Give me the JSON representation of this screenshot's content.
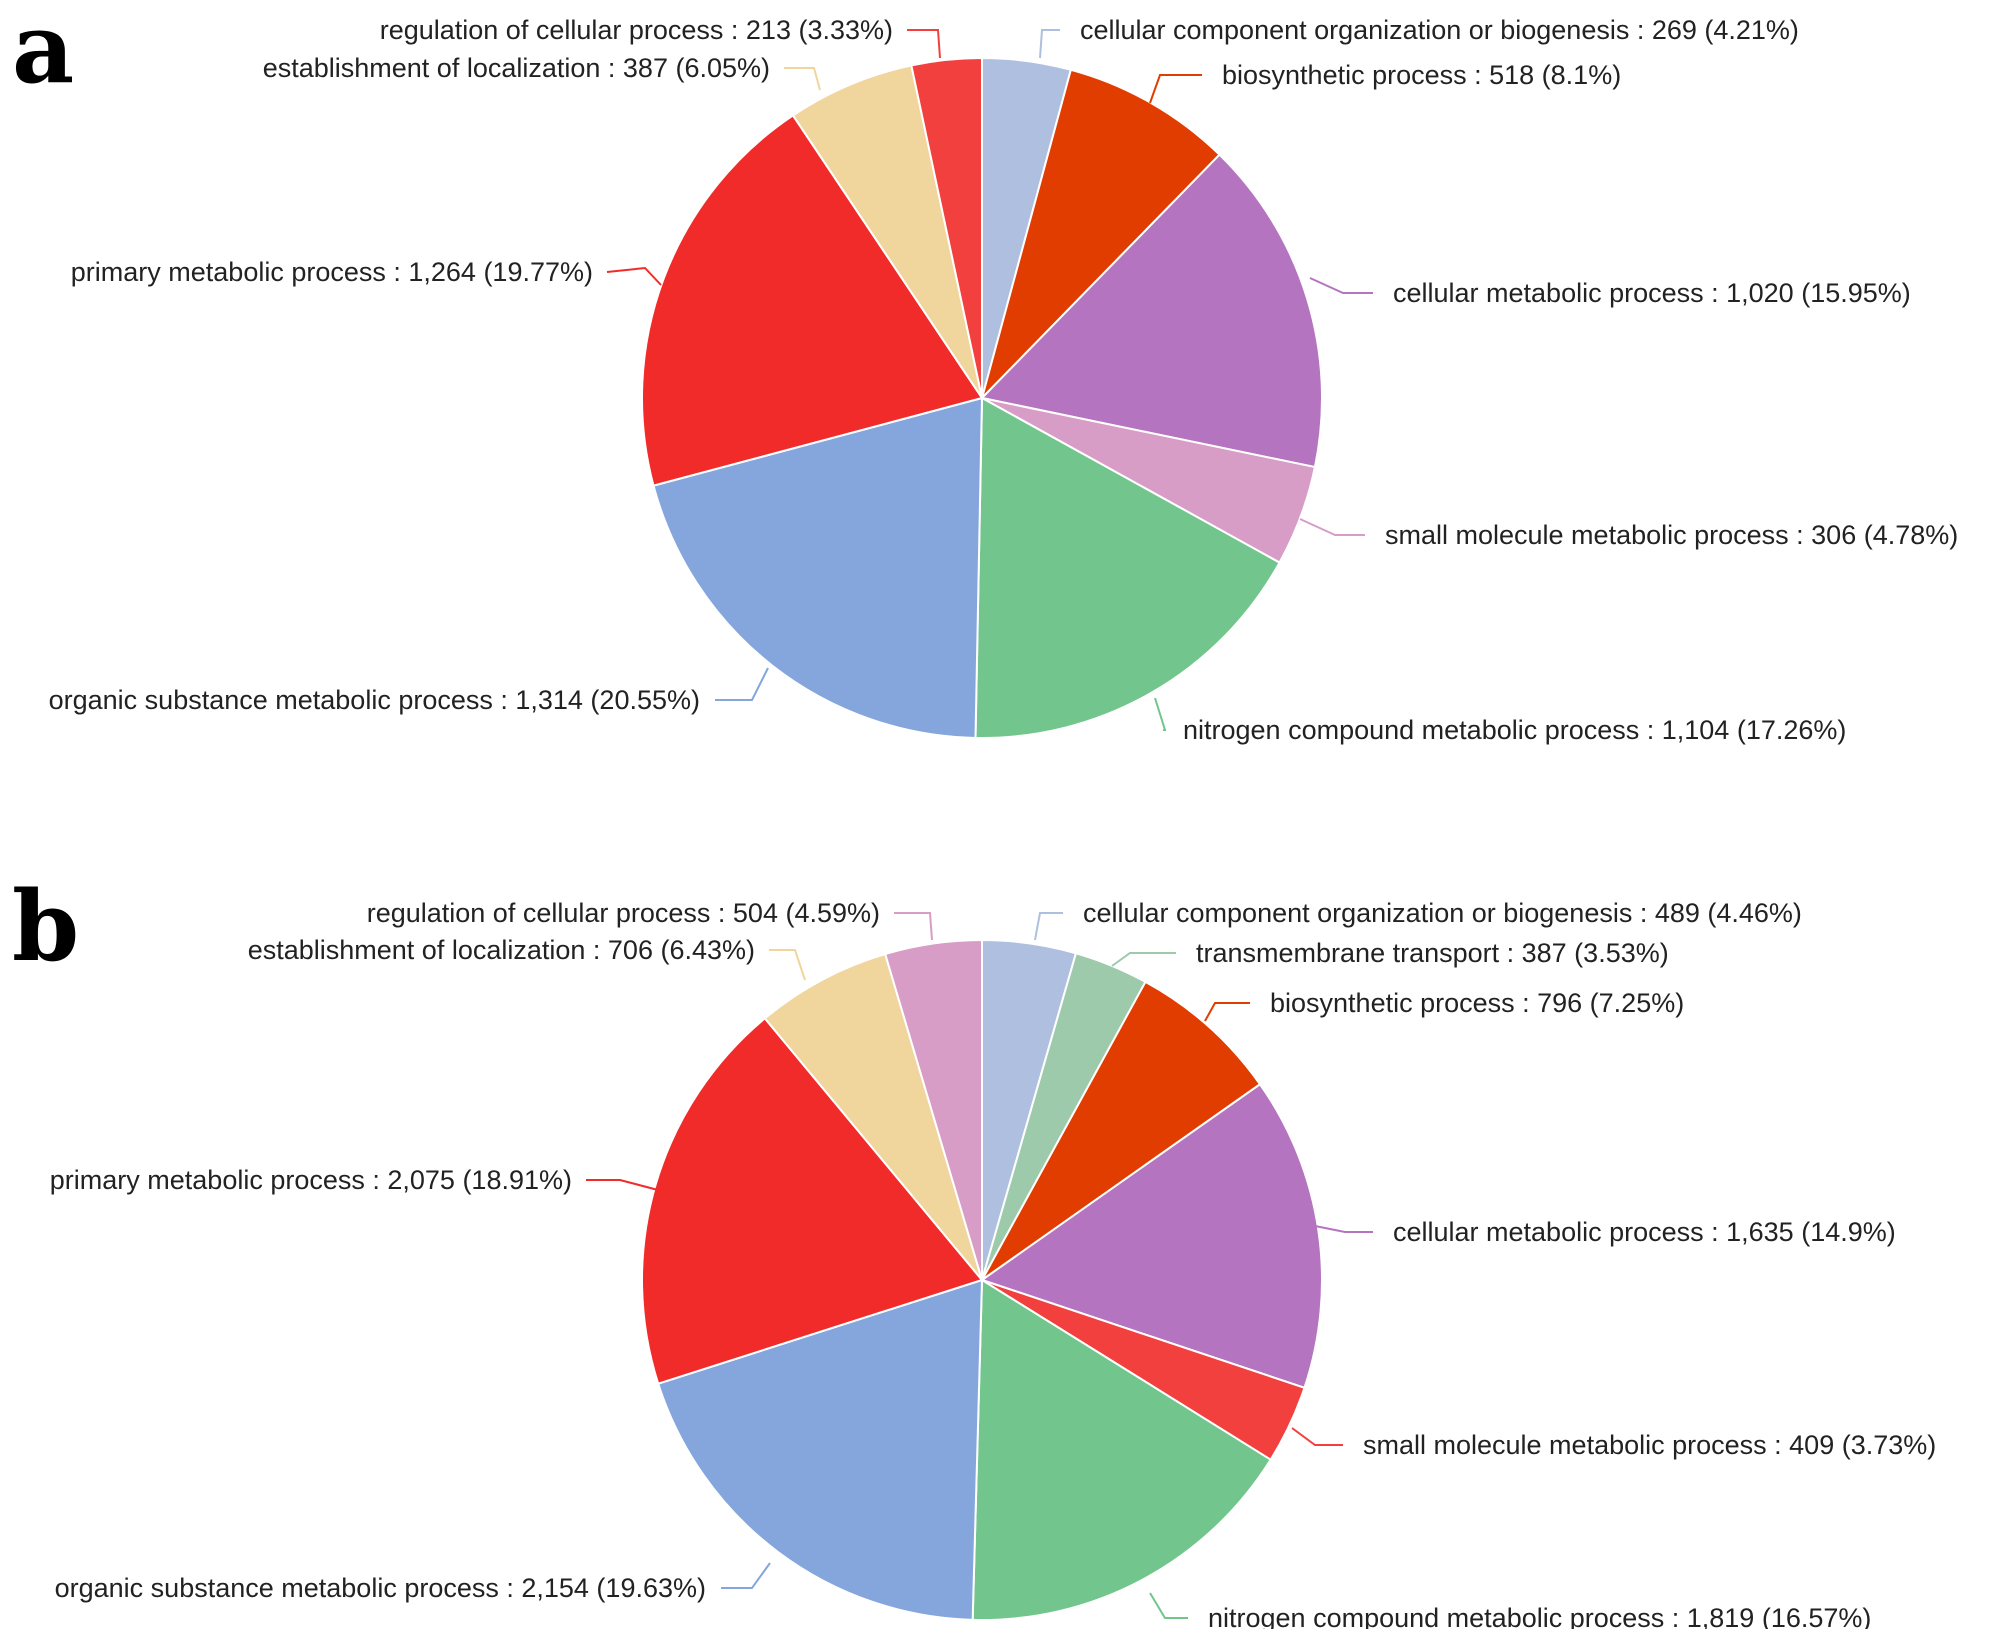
{
  "chart_data": [
    {
      "type": "pie",
      "panel": "a",
      "start_angle_deg": 0,
      "direction": "clockwise",
      "slices": [
        {
          "label": "cellular component organization or biogenesis : 269 (4.21%)",
          "value": 269,
          "percent": 4.21,
          "color": "#aebfdf"
        },
        {
          "label": "biosynthetic process : 518 (8.1%)",
          "value": 518,
          "percent": 8.1,
          "color": "#e23d00"
        },
        {
          "label": "cellular metabolic process : 1,020 (15.95%)",
          "value": 1020,
          "percent": 15.95,
          "color": "#b574bf"
        },
        {
          "label": "small molecule metabolic process : 306 (4.78%)",
          "value": 306,
          "percent": 4.78,
          "color": "#d79dc7"
        },
        {
          "label": "nitrogen compound metabolic process : 1,104 (17.26%)",
          "value": 1104,
          "percent": 17.26,
          "color": "#72c58c"
        },
        {
          "label": "organic substance metabolic process : 1,314 (20.55%)",
          "value": 1314,
          "percent": 20.55,
          "color": "#84a6dd"
        },
        {
          "label": "primary metabolic process : 1,264 (19.77%)",
          "value": 1264,
          "percent": 19.77,
          "color": "#f12b29"
        },
        {
          "label": "establishment of localization : 387 (6.05%)",
          "value": 387,
          "percent": 6.05,
          "color": "#f0d59d"
        },
        {
          "label": "regulation of cellular process : 213 (3.33%)",
          "value": 213,
          "percent": 3.33,
          "color": "#f2403e"
        }
      ]
    },
    {
      "type": "pie",
      "panel": "b",
      "start_angle_deg": 0,
      "direction": "clockwise",
      "slices": [
        {
          "label": "cellular component organization or biogenesis : 489 (4.46%)",
          "value": 489,
          "percent": 4.46,
          "color": "#aebfdf"
        },
        {
          "label": "transmembrane transport : 387 (3.53%)",
          "value": 387,
          "percent": 3.53,
          "color": "#9ccaab"
        },
        {
          "label": "biosynthetic process : 796 (7.25%)",
          "value": 796,
          "percent": 7.25,
          "color": "#e23d00"
        },
        {
          "label": "cellular metabolic process : 1,635 (14.9%)",
          "value": 1635,
          "percent": 14.9,
          "color": "#b574bf"
        },
        {
          "label": "small molecule metabolic process : 409 (3.73%)",
          "value": 409,
          "percent": 3.73,
          "color": "#f2403e"
        },
        {
          "label": "nitrogen compound metabolic process : 1,819 (16.57%)",
          "value": 1819,
          "percent": 16.57,
          "color": "#72c58c"
        },
        {
          "label": "organic substance metabolic process : 2,154 (19.63%)",
          "value": 2154,
          "percent": 19.63,
          "color": "#84a6dd"
        },
        {
          "label": "primary metabolic process : 2,075 (18.91%)",
          "value": 2075,
          "percent": 18.91,
          "color": "#f12b29"
        },
        {
          "label": "establishment of localization : 706 (6.43%)",
          "value": 706,
          "percent": 6.43,
          "color": "#f0d59d"
        },
        {
          "label": "regulation of cellular process : 504 (4.59%)",
          "value": 504,
          "percent": 4.59,
          "color": "#d79dc7"
        }
      ]
    }
  ]
}
